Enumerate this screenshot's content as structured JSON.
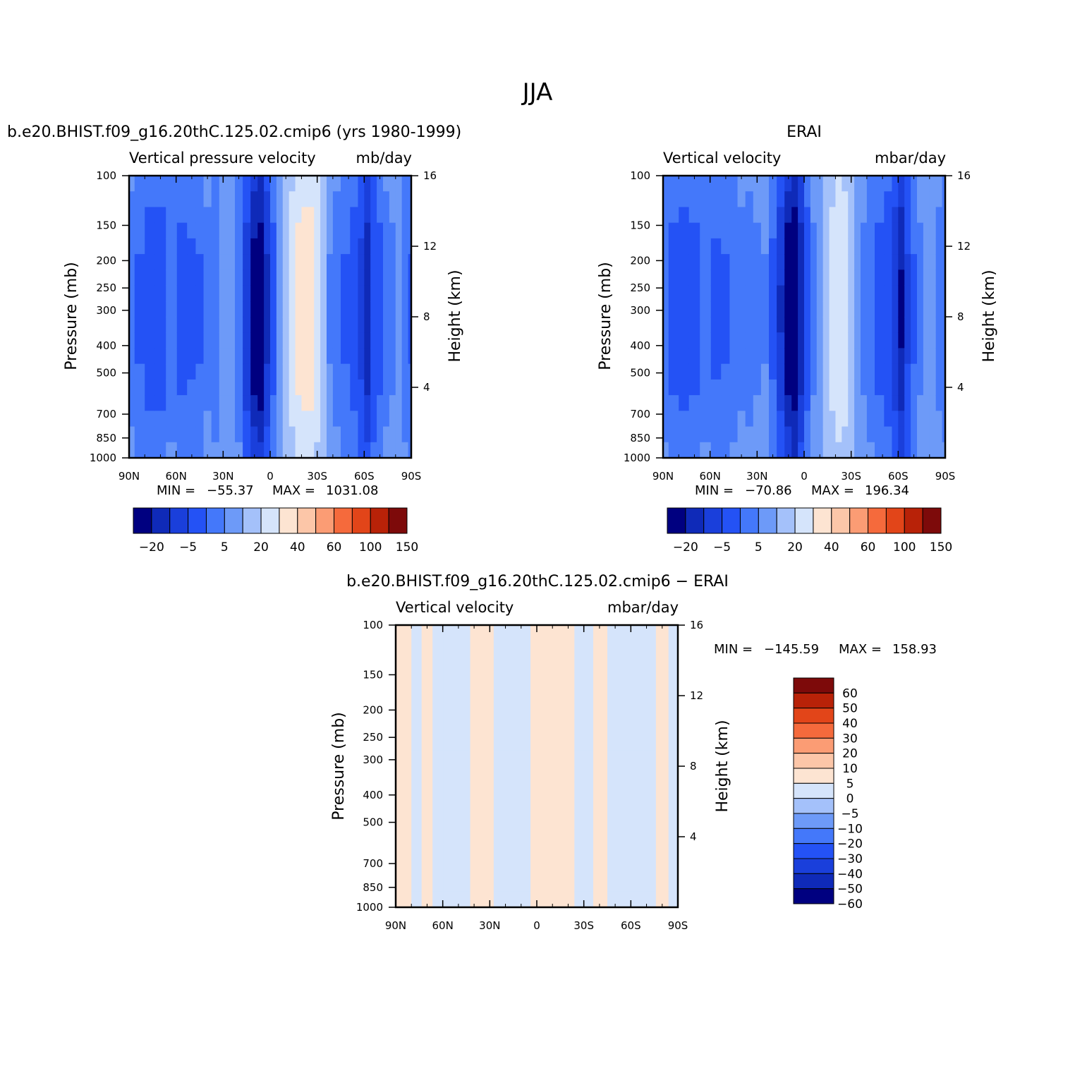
{
  "figure": {
    "title": "JJA"
  },
  "chart_data": [
    {
      "type": "heatmap",
      "title": "b.e20.BHIST.f09_g16.20thC.125.02.cmip6 (yrs 1980-1999)",
      "left_label": "Vertical pressure velocity",
      "right_label": "mb/day",
      "ylabel": "Pressure (mb)",
      "y2label": "Height (km)",
      "x_ticks": [
        "90N",
        "60N",
        "30N",
        "0",
        "30S",
        "60S",
        "90S"
      ],
      "y_ticks": [
        100,
        150,
        200,
        250,
        300,
        400,
        500,
        700,
        850,
        1000
      ],
      "y2_ticks": [
        16,
        12,
        8,
        4
      ],
      "ylim": [
        1000,
        100
      ],
      "xlim": [
        90,
        -90
      ],
      "min": "−55.37",
      "max": "1031.08",
      "min_label": "MIN =",
      "max_label": "MAX =",
      "levels": [
        -40,
        -30,
        -20,
        -10,
        -5,
        0,
        5,
        10,
        20,
        30,
        40,
        50,
        60,
        100,
        150
      ],
      "colorbar_labels": [
        "−20",
        "−5",
        "5",
        "20",
        "40",
        "60",
        "100",
        "150"
      ],
      "fields": [
        {
          "lat": 90,
          "value": -8
        },
        {
          "lat": 83,
          "value": -10
        },
        {
          "lat": 77,
          "value": -14
        },
        {
          "lat": 70,
          "value": -13
        },
        {
          "lat": 63,
          "value": -9
        },
        {
          "lat": 56,
          "value": -12
        },
        {
          "lat": 50,
          "value": -11
        },
        {
          "lat": 45,
          "value": -10
        },
        {
          "lat": 40,
          "value": -7
        },
        {
          "lat": 35,
          "value": -9
        },
        {
          "lat": 30,
          "value": -4
        },
        {
          "lat": 25,
          "value": -2
        },
        {
          "lat": 20,
          "value": -9
        },
        {
          "lat": 15,
          "value": -25
        },
        {
          "lat": 10,
          "value": -45
        },
        {
          "lat": 6,
          "value": -50
        },
        {
          "lat": 2,
          "value": -30
        },
        {
          "lat": -2,
          "value": -12
        },
        {
          "lat": -6,
          "value": -3
        },
        {
          "lat": -10,
          "value": 3
        },
        {
          "lat": -14,
          "value": 8
        },
        {
          "lat": -18,
          "value": 12
        },
        {
          "lat": -22,
          "value": 14
        },
        {
          "lat": -26,
          "value": 13
        },
        {
          "lat": -30,
          "value": 9
        },
        {
          "lat": -34,
          "value": 2
        },
        {
          "lat": -38,
          "value": -5
        },
        {
          "lat": -42,
          "value": -8
        },
        {
          "lat": -48,
          "value": -10
        },
        {
          "lat": -54,
          "value": -14
        },
        {
          "lat": -58,
          "value": -22
        },
        {
          "lat": -62,
          "value": -35
        },
        {
          "lat": -66,
          "value": -18
        },
        {
          "lat": -70,
          "value": -12
        },
        {
          "lat": -74,
          "value": -8
        },
        {
          "lat": -78,
          "value": -6
        },
        {
          "lat": -82,
          "value": -4
        },
        {
          "lat": -86,
          "value": -9
        },
        {
          "lat": -90,
          "value": -10
        }
      ]
    },
    {
      "type": "heatmap",
      "title": "ERAI",
      "left_label": "Vertical velocity",
      "right_label": "mbar/day",
      "ylabel": "Pressure (mb)",
      "y2label": "Height (km)",
      "x_ticks": [
        "90N",
        "60N",
        "30N",
        "0",
        "30S",
        "60S",
        "90S"
      ],
      "y_ticks": [
        100,
        150,
        200,
        250,
        300,
        400,
        500,
        700,
        850,
        1000
      ],
      "y2_ticks": [
        16,
        12,
        8,
        4
      ],
      "ylim": [
        1000,
        100
      ],
      "xlim": [
        90,
        -90
      ],
      "min": "−70.86",
      "max": "196.34",
      "min_label": "MIN =",
      "max_label": "MAX =",
      "levels": [
        -40,
        -30,
        -20,
        -10,
        -5,
        0,
        5,
        10,
        20,
        30,
        40,
        50,
        60,
        100,
        150
      ],
      "colorbar_labels": [
        "−20",
        "−5",
        "5",
        "20",
        "40",
        "60",
        "100",
        "150"
      ],
      "fields": [
        {
          "lat": 90,
          "value": -9
        },
        {
          "lat": 83,
          "value": -12
        },
        {
          "lat": 77,
          "value": -13
        },
        {
          "lat": 70,
          "value": -12
        },
        {
          "lat": 63,
          "value": -9
        },
        {
          "lat": 56,
          "value": -11
        },
        {
          "lat": 50,
          "value": -10
        },
        {
          "lat": 45,
          "value": -9
        },
        {
          "lat": 40,
          "value": -7
        },
        {
          "lat": 35,
          "value": -8
        },
        {
          "lat": 30,
          "value": -6
        },
        {
          "lat": 25,
          "value": -5
        },
        {
          "lat": 20,
          "value": -11
        },
        {
          "lat": 15,
          "value": -28
        },
        {
          "lat": 10,
          "value": -48
        },
        {
          "lat": 6,
          "value": -55
        },
        {
          "lat": 2,
          "value": -35
        },
        {
          "lat": -2,
          "value": -14
        },
        {
          "lat": -6,
          "value": -6
        },
        {
          "lat": -10,
          "value": -1
        },
        {
          "lat": -14,
          "value": 3
        },
        {
          "lat": -18,
          "value": 7
        },
        {
          "lat": -22,
          "value": 9
        },
        {
          "lat": -26,
          "value": 8
        },
        {
          "lat": -30,
          "value": 4
        },
        {
          "lat": -34,
          "value": -2
        },
        {
          "lat": -38,
          "value": -6
        },
        {
          "lat": -42,
          "value": -9
        },
        {
          "lat": -48,
          "value": -12
        },
        {
          "lat": -54,
          "value": -16
        },
        {
          "lat": -58,
          "value": -26
        },
        {
          "lat": -62,
          "value": -38
        },
        {
          "lat": -66,
          "value": -20
        },
        {
          "lat": -70,
          "value": -10
        },
        {
          "lat": -74,
          "value": -6
        },
        {
          "lat": -78,
          "value": -4
        },
        {
          "lat": -82,
          "value": -3
        },
        {
          "lat": -86,
          "value": -7
        },
        {
          "lat": -90,
          "value": -9
        }
      ]
    },
    {
      "type": "heatmap",
      "title": "b.e20.BHIST.f09_g16.20thC.125.02.cmip6 − ERAI",
      "left_label": "Vertical velocity",
      "right_label": "mbar/day",
      "ylabel": "Pressure (mb)",
      "y2label": "Height (km)",
      "x_ticks": [
        "90N",
        "60N",
        "30N",
        "0",
        "30S",
        "60S",
        "90S"
      ],
      "y_ticks": [
        100,
        150,
        200,
        250,
        300,
        400,
        500,
        700,
        850,
        1000
      ],
      "y2_ticks": [
        16,
        12,
        8,
        4
      ],
      "ylim": [
        1000,
        100
      ],
      "xlim": [
        90,
        -90
      ],
      "min": "−145.59",
      "max": "158.93",
      "min_label": "MIN =",
      "max_label": "MAX =",
      "levels": [
        -60,
        -50,
        -40,
        -30,
        -20,
        -10,
        -5,
        0,
        5,
        10,
        20,
        30,
        40,
        50,
        60
      ],
      "colorbar_labels": [
        "60",
        "50",
        "40",
        "30",
        "20",
        "10",
        "5",
        "0",
        "−5",
        "−10",
        "−20",
        "−30",
        "−40",
        "−50",
        "−60"
      ],
      "fields": [
        {
          "lat": 90,
          "value": 1
        },
        {
          "lat": 83,
          "value": 2
        },
        {
          "lat": 77,
          "value": -1
        },
        {
          "lat": 70,
          "value": 1
        },
        {
          "lat": 63,
          "value": -1
        },
        {
          "lat": 56,
          "value": -1
        },
        {
          "lat": 50,
          "value": -2
        },
        {
          "lat": 45,
          "value": -1
        },
        {
          "lat": 40,
          "value": 1
        },
        {
          "lat": 35,
          "value": 1
        },
        {
          "lat": 30,
          "value": 3
        },
        {
          "lat": 25,
          "value": -2
        },
        {
          "lat": 20,
          "value": -2
        },
        {
          "lat": 15,
          "value": -3
        },
        {
          "lat": 10,
          "value": -4
        },
        {
          "lat": 6,
          "value": -3
        },
        {
          "lat": 2,
          "value": 3
        },
        {
          "lat": -2,
          "value": 4
        },
        {
          "lat": -6,
          "value": 4
        },
        {
          "lat": -10,
          "value": 3
        },
        {
          "lat": -14,
          "value": 3
        },
        {
          "lat": -18,
          "value": 3
        },
        {
          "lat": -22,
          "value": 2
        },
        {
          "lat": -26,
          "value": -1
        },
        {
          "lat": -30,
          "value": -2
        },
        {
          "lat": -34,
          "value": -2
        },
        {
          "lat": -38,
          "value": 1
        },
        {
          "lat": -42,
          "value": 1
        },
        {
          "lat": -48,
          "value": -1
        },
        {
          "lat": -54,
          "value": -1
        },
        {
          "lat": -58,
          "value": -2
        },
        {
          "lat": -62,
          "value": -2
        },
        {
          "lat": -66,
          "value": -3
        },
        {
          "lat": -70,
          "value": -3
        },
        {
          "lat": -74,
          "value": -2
        },
        {
          "lat": -78,
          "value": 1
        },
        {
          "lat": -82,
          "value": 3
        },
        {
          "lat": -86,
          "value": -2
        },
        {
          "lat": -90,
          "value": -1
        }
      ]
    }
  ],
  "colors": {
    "abs": [
      "#000080",
      "#0f2ab8",
      "#1a3fdb",
      "#2452f5",
      "#4478fa",
      "#6d9af8",
      "#a4c1fa",
      "#d5e4fb",
      "#fde4d2",
      "#fcc6a8",
      "#fb9c74",
      "#f56a3c",
      "#e24519",
      "#b82208",
      "#7d0a0a"
    ],
    "diff": [
      "#000080",
      "#0f2ab8",
      "#1a3fdb",
      "#2452f5",
      "#4478fa",
      "#6d9af8",
      "#a4c1fa",
      "#d5e4fb",
      "#fde4d2",
      "#fcc6a8",
      "#fb9c74",
      "#f56a3c",
      "#e24519",
      "#b82208",
      "#7d0a0a"
    ]
  }
}
